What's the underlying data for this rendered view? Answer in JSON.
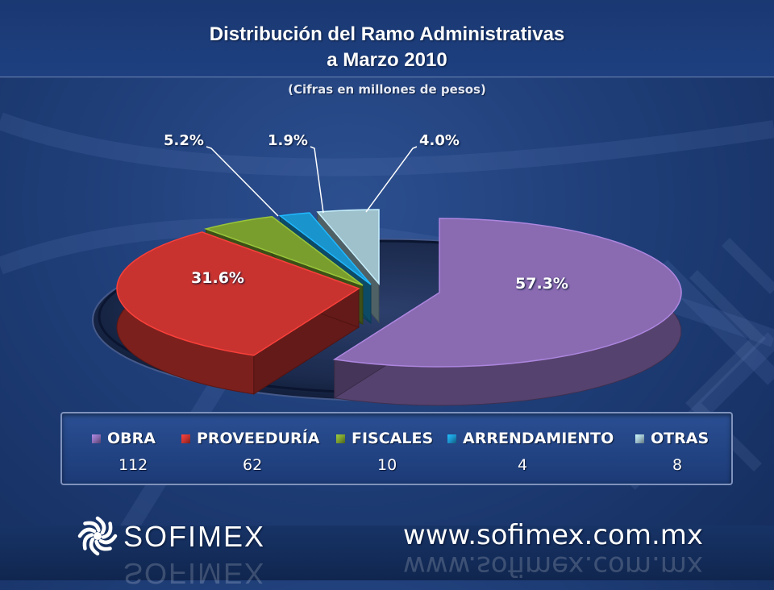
{
  "header": {
    "title_line1": "Distribución del Ramo Administrativas",
    "title_line2": "a Marzo 2010",
    "subtitle": "(Cifras en millones de pesos)"
  },
  "chart_data": {
    "type": "pie",
    "categories": [
      "OBRA",
      "PROVEEDURÍA",
      "FISCALES",
      "ARRENDAMIENTO",
      "OTRAS"
    ],
    "values": [
      112,
      62,
      10,
      4,
      8
    ],
    "percent_labels": [
      "57.3%",
      "31.6%",
      "5.2%",
      "1.9%",
      "4.0%"
    ],
    "colors": [
      "#8a6bb2",
      "#c8332f",
      "#7a9e2e",
      "#1a94cc",
      "#9fc1cc"
    ],
    "exploded": true,
    "style": "3d",
    "legend_position": "bottom"
  },
  "legend": {
    "items": [
      {
        "label": "OBRA",
        "value": "112"
      },
      {
        "label": "PROVEEDURÍA",
        "value": "62"
      },
      {
        "label": "FISCALES",
        "value": "10"
      },
      {
        "label": "ARRENDAMIENTO",
        "value": "4"
      },
      {
        "label": "OTRAS",
        "value": "8"
      }
    ]
  },
  "footer": {
    "logo_icon": "sofimex-flower-icon",
    "logo_text": "SOFIMEX",
    "website": "www.sofimex.com.mx"
  }
}
